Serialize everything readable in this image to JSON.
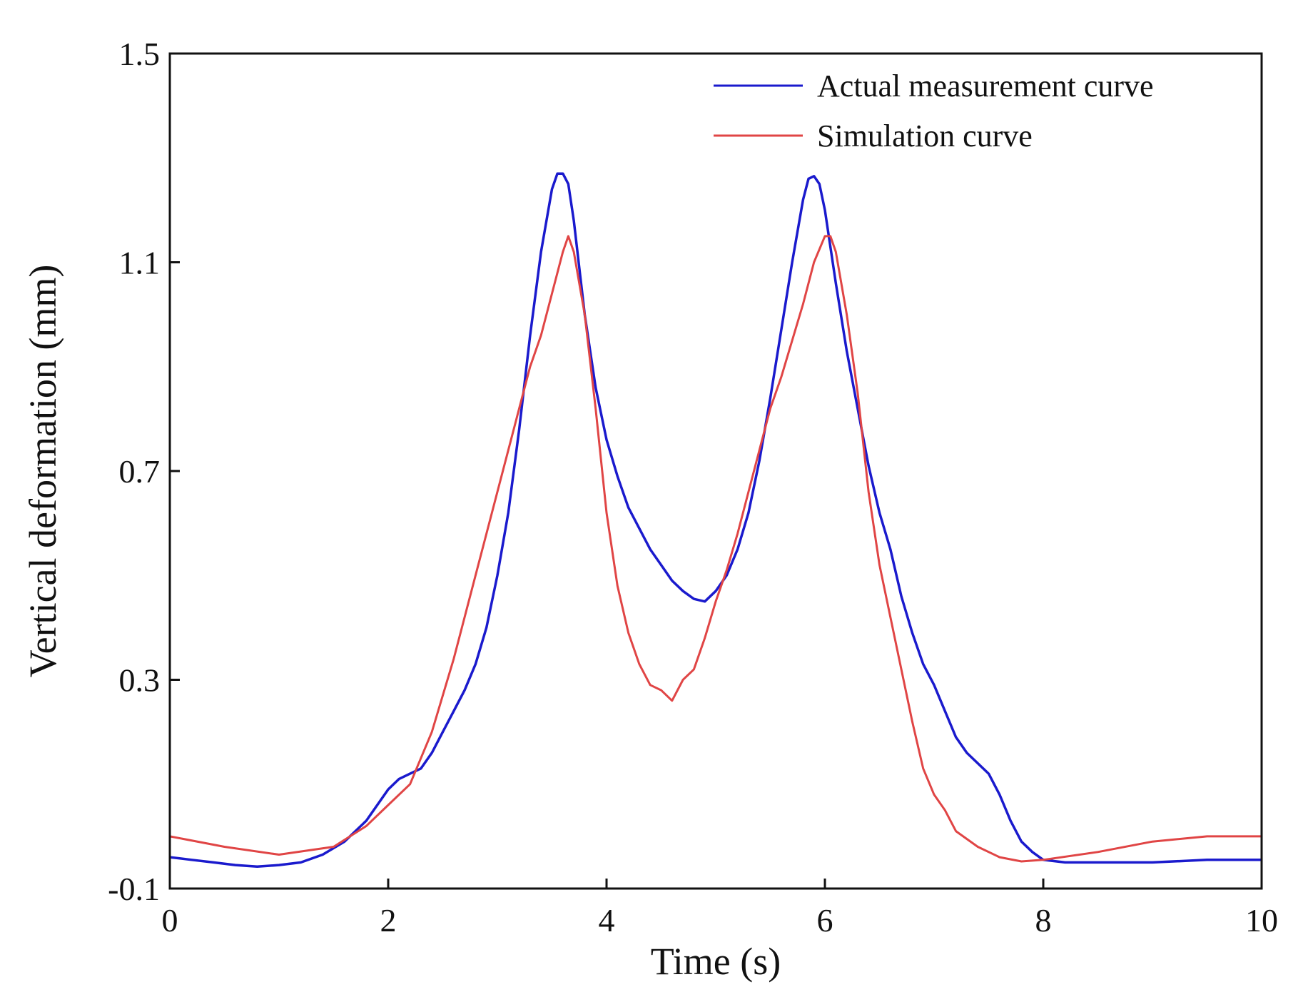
{
  "chart_data": {
    "type": "line",
    "xlabel": "Time (s)",
    "ylabel": "Vertical deformation (mm)",
    "xlim": [
      0,
      10
    ],
    "ylim": [
      -0.1,
      1.5
    ],
    "xticks": [
      0,
      2,
      4,
      6,
      8,
      10
    ],
    "yticks": [
      -0.1,
      0.3,
      0.7,
      1.1,
      1.5
    ],
    "xtick_labels": [
      "0",
      "2",
      "4",
      "6",
      "8",
      "10"
    ],
    "ytick_labels": [
      "-0.1",
      "0.3",
      "0.7",
      "1.1",
      "1.5"
    ],
    "grid": false,
    "legend_position": "top-right",
    "series": [
      {
        "name": "Actual measurement curve",
        "color": "#1a1acd",
        "x": [
          0,
          0.2,
          0.4,
          0.6,
          0.8,
          1.0,
          1.2,
          1.4,
          1.6,
          1.8,
          1.9,
          2.0,
          2.1,
          2.2,
          2.3,
          2.4,
          2.5,
          2.6,
          2.7,
          2.8,
          2.9,
          3.0,
          3.1,
          3.2,
          3.3,
          3.4,
          3.5,
          3.55,
          3.6,
          3.65,
          3.7,
          3.8,
          3.9,
          4.0,
          4.1,
          4.2,
          4.3,
          4.4,
          4.5,
          4.6,
          4.7,
          4.8,
          4.9,
          5.0,
          5.1,
          5.2,
          5.3,
          5.4,
          5.5,
          5.6,
          5.7,
          5.8,
          5.85,
          5.9,
          5.95,
          6.0,
          6.1,
          6.2,
          6.3,
          6.4,
          6.5,
          6.6,
          6.7,
          6.8,
          6.9,
          7.0,
          7.1,
          7.2,
          7.3,
          7.4,
          7.5,
          7.6,
          7.7,
          7.8,
          7.9,
          8.0,
          8.2,
          8.5,
          9.0,
          9.5,
          10.0
        ],
        "values": [
          -0.04,
          -0.045,
          -0.05,
          -0.055,
          -0.058,
          -0.055,
          -0.05,
          -0.035,
          -0.01,
          0.03,
          0.06,
          0.09,
          0.11,
          0.12,
          0.13,
          0.16,
          0.2,
          0.24,
          0.28,
          0.33,
          0.4,
          0.5,
          0.62,
          0.78,
          0.96,
          1.12,
          1.24,
          1.27,
          1.27,
          1.25,
          1.18,
          1.0,
          0.86,
          0.76,
          0.69,
          0.63,
          0.59,
          0.55,
          0.52,
          0.49,
          0.47,
          0.455,
          0.45,
          0.47,
          0.5,
          0.55,
          0.62,
          0.72,
          0.84,
          0.97,
          1.1,
          1.22,
          1.26,
          1.265,
          1.25,
          1.2,
          1.06,
          0.93,
          0.82,
          0.71,
          0.62,
          0.55,
          0.46,
          0.39,
          0.33,
          0.29,
          0.24,
          0.19,
          0.16,
          0.14,
          0.12,
          0.08,
          0.03,
          -0.01,
          -0.03,
          -0.045,
          -0.05,
          -0.05,
          -0.05,
          -0.045,
          -0.045
        ]
      },
      {
        "name": "Simulation curve",
        "color": "#e04545",
        "x": [
          0,
          0.5,
          1.0,
          1.5,
          1.8,
          2.0,
          2.2,
          2.4,
          2.6,
          2.8,
          3.0,
          3.2,
          3.3,
          3.4,
          3.5,
          3.6,
          3.65,
          3.7,
          3.8,
          3.9,
          4.0,
          4.1,
          4.2,
          4.3,
          4.4,
          4.5,
          4.6,
          4.7,
          4.8,
          4.9,
          5.0,
          5.1,
          5.2,
          5.3,
          5.4,
          5.5,
          5.6,
          5.7,
          5.8,
          5.9,
          6.0,
          6.05,
          6.1,
          6.2,
          6.3,
          6.4,
          6.5,
          6.6,
          6.7,
          6.8,
          6.9,
          7.0,
          7.1,
          7.2,
          7.4,
          7.6,
          7.8,
          8.0,
          8.5,
          9.0,
          9.5,
          10.0
        ],
        "values": [
          0.0,
          -0.02,
          -0.035,
          -0.02,
          0.02,
          0.06,
          0.1,
          0.2,
          0.34,
          0.5,
          0.66,
          0.82,
          0.9,
          0.96,
          1.04,
          1.12,
          1.15,
          1.12,
          1.0,
          0.82,
          0.62,
          0.48,
          0.39,
          0.33,
          0.29,
          0.28,
          0.26,
          0.3,
          0.32,
          0.38,
          0.45,
          0.51,
          0.58,
          0.66,
          0.74,
          0.82,
          0.88,
          0.95,
          1.02,
          1.1,
          1.15,
          1.15,
          1.12,
          1.0,
          0.85,
          0.66,
          0.52,
          0.42,
          0.32,
          0.22,
          0.13,
          0.08,
          0.05,
          0.01,
          -0.02,
          -0.04,
          -0.048,
          -0.045,
          -0.03,
          -0.01,
          0.0,
          0.0
        ]
      }
    ]
  }
}
